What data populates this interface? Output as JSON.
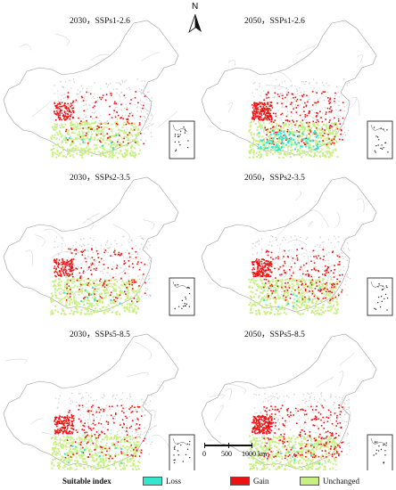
{
  "panels": [
    {
      "title": "2030，SSPs1-2.6",
      "gain": 0.35,
      "loss": 0.05
    },
    {
      "title": "2050，SSPs1-2.6",
      "gain": 0.75,
      "loss": 0.55
    },
    {
      "title": "2030，SSPs2-3.5",
      "gain": 0.45,
      "loss": 0.05
    },
    {
      "title": "2050，SSPs2-3.5",
      "gain": 0.65,
      "loss": 0.05
    },
    {
      "title": "2030，SSPs5-8.5",
      "gain": 0.55,
      "loss": 0.05
    },
    {
      "title": "2050，SSPs5-8.5",
      "gain": 0.85,
      "loss": 0.05
    }
  ],
  "north_label": "N",
  "scale": {
    "t0": "0",
    "t1": "500",
    "t2": "1000 km"
  },
  "legend": {
    "title": "Suitable index",
    "items": [
      {
        "label": "Loss",
        "color": "#33e6cc"
      },
      {
        "label": "Gain",
        "color": "#ee1111"
      },
      {
        "label": "Unchanged",
        "color": "#c8f080"
      }
    ]
  }
}
